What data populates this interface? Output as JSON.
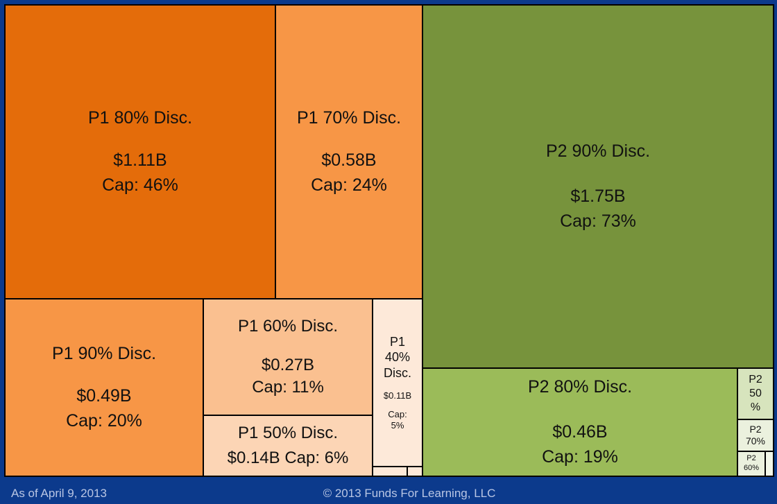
{
  "chart_data": {
    "type": "treemap",
    "title": "",
    "items": [
      {
        "id": "p1-80",
        "name": "P1 80% Disc.",
        "value": "$1.11B",
        "cap": "Cap: 46%",
        "color": "#e46c0a"
      },
      {
        "id": "p1-70",
        "name": "P1 70% Disc.",
        "value": "$0.58B",
        "cap": "Cap: 24%",
        "color": "#f79646"
      },
      {
        "id": "p1-90",
        "name": "P1 90% Disc.",
        "value": "$0.49B",
        "cap": "Cap: 20%",
        "color": "#f79646"
      },
      {
        "id": "p1-60",
        "name": "P1 60% Disc.",
        "value": "$0.27B",
        "cap": "Cap: 11%",
        "color": "#fac090"
      },
      {
        "id": "p1-50",
        "name": "P1 50% Disc.",
        "value": "$0.14B",
        "cap": "Cap: 6%",
        "color": "#fcd5b5"
      },
      {
        "id": "p1-40",
        "name": "P1\n40%\nDisc.",
        "value": "$0.11B",
        "cap": "Cap:\n5%",
        "color": "#fde9d9"
      },
      {
        "id": "p2-90",
        "name": "P2 90% Disc.",
        "value": "$1.75B",
        "cap": "Cap: 73%",
        "color": "#77933c"
      },
      {
        "id": "p2-80",
        "name": "P2 80% Disc.",
        "value": "$0.46B",
        "cap": "Cap: 19%",
        "color": "#9bbb59"
      },
      {
        "id": "p2-50",
        "name": "P2\n50\n%",
        "value": "",
        "cap": "",
        "color": "#d7e4bd"
      },
      {
        "id": "p2-70",
        "name": "P2\n70%",
        "value": "",
        "cap": "",
        "color": "#ebf1de"
      },
      {
        "id": "p2-60",
        "name": "P2\n60%",
        "value": "",
        "cap": "",
        "color": "#ebf1de"
      },
      {
        "id": "p2-tiny",
        "name": "",
        "value": "",
        "cap": "",
        "color": "#f2f7e8"
      },
      {
        "id": "p1-tiny-a",
        "name": "",
        "value": "",
        "cap": "",
        "color": "#fde9d9"
      },
      {
        "id": "p1-tiny-b",
        "name": "",
        "value": "",
        "cap": "",
        "color": "#fde9d9"
      }
    ]
  },
  "footer": {
    "date": "As of April 9, 2013",
    "copyright": "© 2013 Funds For Learning, LLC"
  }
}
